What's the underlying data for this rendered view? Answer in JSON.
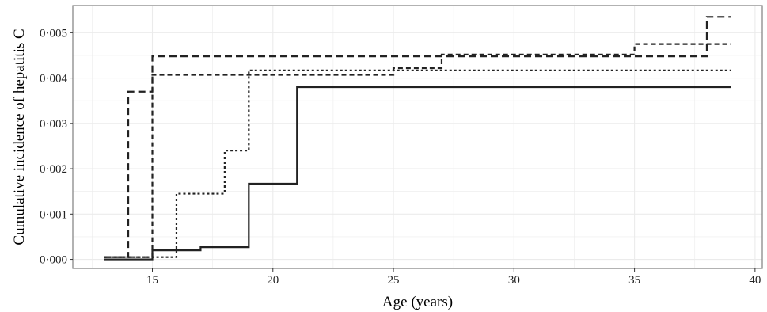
{
  "chart_data": {
    "type": "line",
    "step": true,
    "title": "",
    "xlabel": "Age (years)",
    "ylabel": "Cumulative incidence of hepatitis C",
    "xlim": [
      11.7,
      40.3
    ],
    "ylim": [
      -0.0002,
      0.0056
    ],
    "x_ticks": [
      15,
      20,
      25,
      30,
      35,
      40
    ],
    "x_tick_labels": [
      "15",
      "20",
      "25",
      "30",
      "35",
      "40"
    ],
    "y_ticks": [
      0,
      0.001,
      0.002,
      0.003,
      0.004,
      0.005
    ],
    "y_tick_labels": [
      "0·000",
      "0·001",
      "0·002",
      "0·003",
      "0·004",
      "0·005"
    ],
    "grid": true,
    "legend": "none",
    "series": [
      {
        "linestyle": "solid",
        "x": [
          13,
          15,
          17,
          19,
          21,
          39
        ],
        "y": [
          0.0,
          0.0002,
          0.00027,
          0.00167,
          0.0038,
          0.0038
        ]
      },
      {
        "linestyle": "dotted",
        "x": [
          13,
          16,
          18,
          19,
          39
        ],
        "y": [
          5e-05,
          0.00145,
          0.0024,
          0.00417,
          0.00417
        ]
      },
      {
        "linestyle": "dashed-long",
        "x": [
          13,
          14,
          15,
          38,
          39
        ],
        "y": [
          5e-05,
          0.0037,
          0.00448,
          0.00535,
          0.00535
        ]
      },
      {
        "linestyle": "dashed",
        "x": [
          13,
          15,
          25,
          27,
          35,
          39
        ],
        "y": [
          5e-05,
          0.00407,
          0.00422,
          0.00452,
          0.00475,
          0.00475
        ]
      }
    ],
    "colors": {
      "line": "#222222",
      "grid": "#ebebeb",
      "panel_border": "#7f7f7f"
    }
  }
}
